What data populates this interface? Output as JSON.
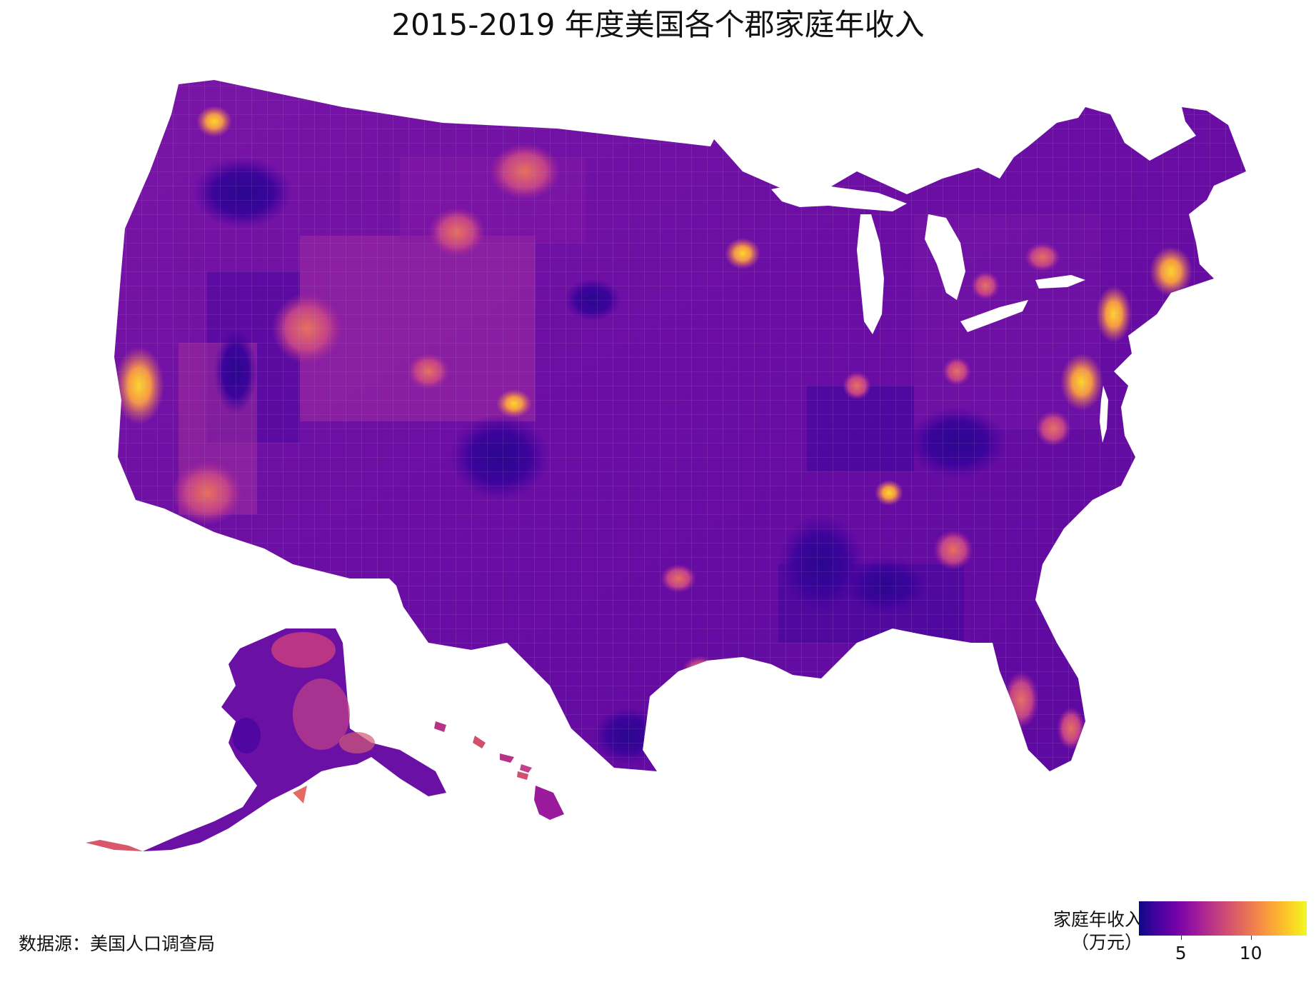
{
  "title": "2015-2019 年度美国各个郡家庭年收入",
  "source": "数据源：美国人口调查局",
  "legend": {
    "title_line1": "家庭年收入",
    "title_line2": "（万元）",
    "min": 2,
    "max": 14,
    "ticks": [
      {
        "value": 5,
        "label": "5"
      },
      {
        "value": 10,
        "label": "10"
      }
    ],
    "colorscale": [
      "#0d0887",
      "#46039f",
      "#7201a8",
      "#9c179e",
      "#bd3786",
      "#d8576b",
      "#ed7953",
      "#fb9f3a",
      "#fdca26",
      "#f0f921"
    ]
  },
  "map": {
    "type": "choropleth",
    "scale": "continuous",
    "region_level": "county",
    "regions_shown": [
      "contiguous-us",
      "alaska",
      "hawaii"
    ],
    "water_color": "#ffffff",
    "border_color": "#ffffff"
  }
}
